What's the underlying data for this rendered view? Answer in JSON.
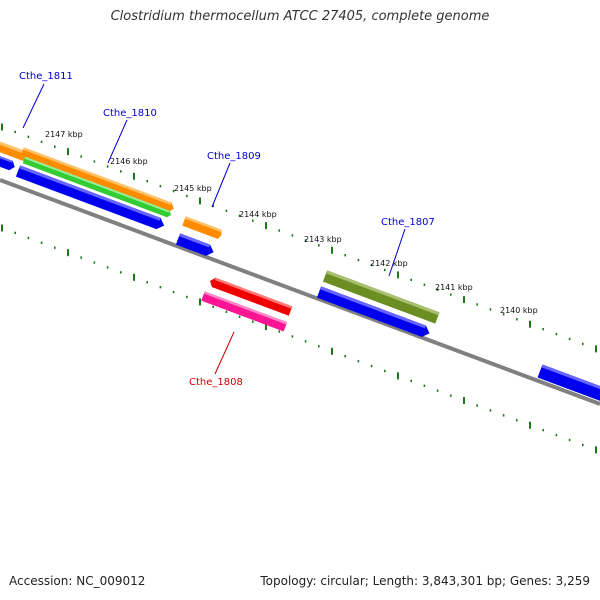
{
  "title": "Clostridium thermocellum ATCC 27405, complete genome",
  "footer": {
    "accession": "Accession: NC_009012",
    "summary": "Topology: circular; Length: 3,843,301 bp; Genes: 3,259"
  },
  "scale_labels": [
    "2147 kbp",
    "2146 kbp",
    "2145 kbp",
    "2144 kbp",
    "2143 kbp",
    "2142 kbp",
    "2141 kbp",
    "2140 kbp"
  ],
  "gene_labels": [
    "Cthe_1811",
    "Cthe_1810",
    "Cthe_1809",
    "Cthe_1807",
    "Cthe_1808"
  ],
  "colors": {
    "backbone": "#808080",
    "ticks": "#1a7a1a",
    "orange": "#ff8c00",
    "green": "#33cc33",
    "blue": "#0000ee",
    "olive": "#6b8e23",
    "red": "#ee0000",
    "pink": "#ff1493",
    "label_blue": "#0000cc",
    "label_red": "#cc0000"
  }
}
